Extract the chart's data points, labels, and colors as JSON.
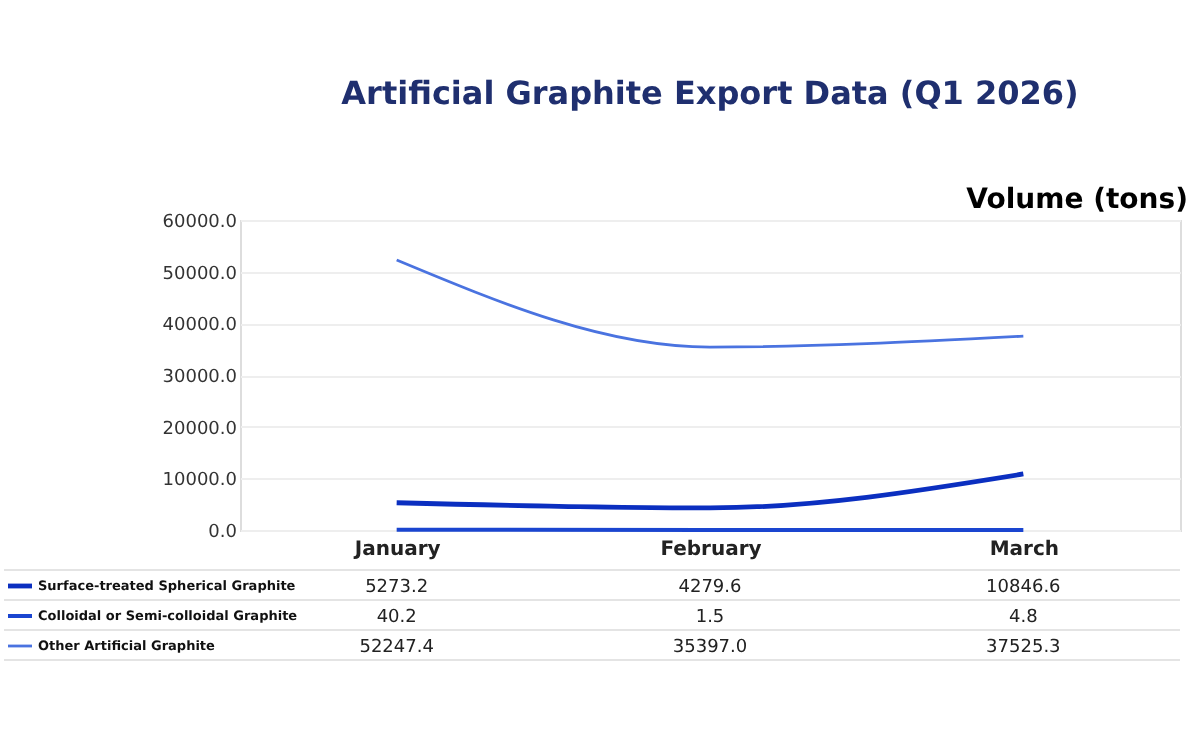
{
  "chart_data": {
    "type": "line",
    "title": "Artificial Graphite Export Data (Q1 2026)",
    "ylabel": "Volume (tons)",
    "categories": [
      "January",
      "February",
      "March"
    ],
    "series": [
      {
        "name": "Surface-treated Spherical Graphite",
        "color": "#0b2fc0",
        "values": [
          5273.2,
          4279.6,
          10846.6
        ],
        "value_labels": [
          "5273.2",
          "4279.6",
          "10846.6"
        ]
      },
      {
        "name": "Colloidal or Semi-colloidal Graphite",
        "color": "#1a45d0",
        "values": [
          40.2,
          1.5,
          4.8
        ],
        "value_labels": [
          "40.2",
          "1.5",
          "4.8"
        ]
      },
      {
        "name": "Other Artificial Graphite",
        "color": "#4a73e0",
        "values": [
          52247.4,
          35397.0,
          37525.3
        ],
        "value_labels": [
          "52247.4",
          "35397.0",
          "37525.3"
        ]
      }
    ],
    "ylim": [
      0,
      60000
    ],
    "yticks": [
      {
        "value": 0,
        "label": "0.0"
      },
      {
        "value": 10000,
        "label": "10000.0"
      },
      {
        "value": 20000,
        "label": "20000.0"
      },
      {
        "value": 30000,
        "label": "30000.0"
      },
      {
        "value": 40000,
        "label": "40000.0"
      },
      {
        "value": 50000,
        "label": "50000.0"
      },
      {
        "value": 60000,
        "label": "60000.0"
      }
    ],
    "grid": "y",
    "legend": "bottom left",
    "marker": "none"
  }
}
